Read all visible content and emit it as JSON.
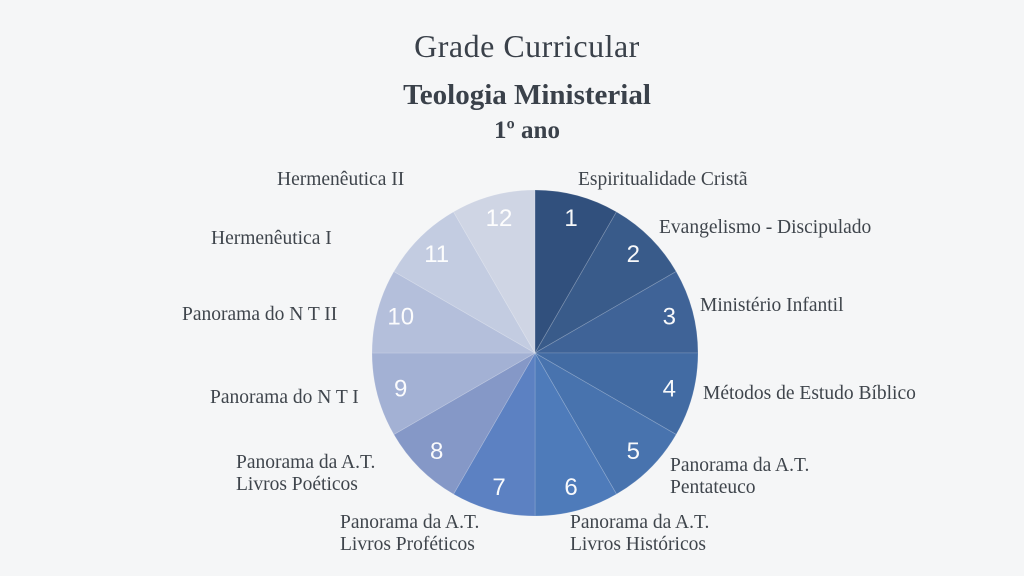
{
  "header": {
    "title": "Grade Curricular",
    "subtitle": "Teologia Ministerial",
    "year": "1º ano"
  },
  "colors": {
    "background": "#F5F6F7",
    "title_text": "#3A414A",
    "label_text": "#3F454C",
    "number_text": "#FFFFFF",
    "slice_divider": "rgba(255,255,255,0.18)"
  },
  "chart_data": {
    "type": "pie",
    "title": "Grade Curricular - Teologia Ministerial - 1º ano",
    "start_angle_deg": 0,
    "direction": "clockwise",
    "legend_position": "around",
    "slices": [
      {
        "number": "1",
        "label": "Espiritualidade Cristã",
        "value": 1,
        "color": "#31507D"
      },
      {
        "number": "2",
        "label": "Evangelismo - Discipulado",
        "value": 1,
        "color": "#395B8A"
      },
      {
        "number": "3",
        "label": "Ministério Infantil",
        "value": 1,
        "color": "#3F6397"
      },
      {
        "number": "4",
        "label": "Métodos de Estudo Bíblico",
        "value": 1,
        "color": "#426BA3"
      },
      {
        "number": "5",
        "label": "Panorama da A.T.\nPentateuco",
        "value": 1,
        "color": "#4873AE"
      },
      {
        "number": "6",
        "label": "Panorama da A.T.\nLivros Históricos",
        "value": 1,
        "color": "#4E7BBA"
      },
      {
        "number": "7",
        "label": "Panorama da A.T.\nLivros Proféticos",
        "value": 1,
        "color": "#5C81C2"
      },
      {
        "number": "8",
        "label": "Panorama da A.T.\nLivros Poéticos",
        "value": 1,
        "color": "#8598C7"
      },
      {
        "number": "9",
        "label": "Panorama do N T I",
        "value": 1,
        "color": "#A3B1D4"
      },
      {
        "number": "10",
        "label": "Panorama do N T II",
        "value": 1,
        "color": "#B4BFDB"
      },
      {
        "number": "11",
        "label": "Hermenêutica I",
        "value": 1,
        "color": "#C3CCE1"
      },
      {
        "number": "12",
        "label": "Hermenêutica II",
        "value": 1,
        "color": "#CFD5E4"
      }
    ]
  }
}
